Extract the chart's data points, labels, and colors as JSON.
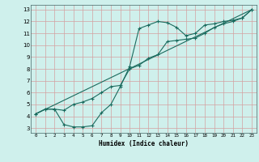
{
  "xlabel": "Humidex (Indice chaleur)",
  "bg_color": "#cff0ec",
  "grid_color": "#d4a0a0",
  "line_color": "#1a6b5e",
  "xlim": [
    -0.5,
    23.5
  ],
  "ylim": [
    2.6,
    13.4
  ],
  "xticks": [
    0,
    1,
    2,
    3,
    4,
    5,
    6,
    7,
    8,
    9,
    10,
    11,
    12,
    13,
    14,
    15,
    16,
    17,
    18,
    19,
    20,
    21,
    22,
    23
  ],
  "yticks": [
    3,
    4,
    5,
    6,
    7,
    8,
    9,
    10,
    11,
    12,
    13
  ],
  "line1_x": [
    0,
    1,
    2,
    3,
    4,
    5,
    6,
    7,
    8,
    9,
    10,
    11,
    12,
    13,
    14,
    15,
    16,
    17,
    18,
    19,
    20,
    21,
    22,
    23
  ],
  "line1_y": [
    4.2,
    4.6,
    4.6,
    4.5,
    5.0,
    5.2,
    5.5,
    6.0,
    6.5,
    6.6,
    8.0,
    8.3,
    8.9,
    9.2,
    10.3,
    10.4,
    10.5,
    10.6,
    11.0,
    11.5,
    11.8,
    12.0,
    12.3,
    13.0
  ],
  "line2_x": [
    0,
    1,
    2,
    3,
    4,
    5,
    6,
    7,
    8,
    9,
    10,
    11,
    12,
    13,
    14,
    15,
    16,
    17,
    18,
    19,
    20,
    21,
    22,
    23
  ],
  "line2_y": [
    4.2,
    4.6,
    4.6,
    3.3,
    3.1,
    3.1,
    3.2,
    4.3,
    5.0,
    6.5,
    8.2,
    11.4,
    11.7,
    12.0,
    11.9,
    11.5,
    10.8,
    11.0,
    11.7,
    11.8,
    12.0,
    12.1,
    12.3,
    13.0
  ],
  "line3_x": [
    0,
    23
  ],
  "line3_y": [
    4.2,
    13.0
  ]
}
